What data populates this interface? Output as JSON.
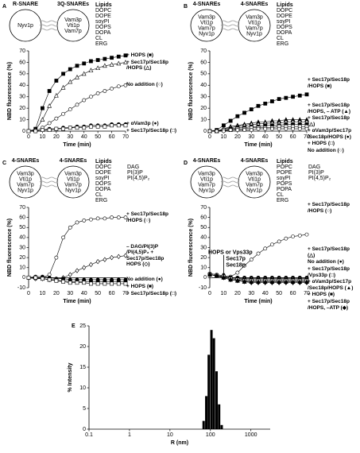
{
  "chart_data": [
    {
      "type": "line",
      "panel": "A",
      "vesicles": [
        {
          "label": "R-SNARE",
          "proteins": [
            "Nyv1p"
          ]
        },
        {
          "label": "3Q-SNAREs",
          "proteins": [
            "Vam3p",
            "Vti1p",
            "Vam7p"
          ]
        }
      ],
      "lipids_title": "Lipids",
      "lipids": [
        "DOPC",
        "DOPE",
        "soyPI",
        "DOPS",
        "DOPA",
        "CL",
        "ERG"
      ],
      "xlabel": "Time (min)",
      "ylabel": "NBD fluorescence (%)",
      "x": [
        0,
        5,
        10,
        15,
        20,
        25,
        30,
        35,
        40,
        45,
        50,
        55,
        60,
        65,
        70
      ],
      "xlim": [
        0,
        70
      ],
      "xticks": [
        0,
        10,
        20,
        30,
        40,
        50,
        60,
        70
      ],
      "ylim": [
        0,
        70
      ],
      "yticks": [
        0,
        10,
        20,
        30,
        40,
        50,
        60,
        70
      ],
      "series": [
        {
          "name": "+ HOPS (■)",
          "marker": "square-filled",
          "color": "#000000",
          "values": [
            0,
            2,
            20,
            35,
            44,
            50,
            54,
            57,
            59,
            61,
            62,
            63,
            64,
            65,
            66
          ]
        },
        {
          "name": "+ Sec17p/Sec18p /HOPS (△)",
          "marker": "triangle-open",
          "color": "#000000",
          "values": [
            0,
            1,
            10,
            22,
            31,
            38,
            43,
            47,
            50,
            53,
            55,
            57,
            58,
            59,
            60
          ]
        },
        {
          "name": "No addition (○)",
          "marker": "circle-open",
          "color": "#000000",
          "values": [
            0,
            0,
            3,
            7,
            11,
            15,
            19,
            23,
            27,
            30,
            33,
            35,
            37,
            39,
            40
          ]
        },
        {
          "name": "+ αVam3p (●)",
          "marker": "circle-filled",
          "color": "#000000",
          "values": [
            0,
            0,
            1,
            2,
            2,
            3,
            3,
            4,
            4,
            5,
            5,
            5,
            6,
            6,
            6
          ]
        },
        {
          "name": "+ Sec17p/Sec18p (□)",
          "marker": "square-open",
          "color": "#000000",
          "values": [
            0,
            0,
            1,
            1,
            2,
            2,
            3,
            3,
            3,
            4,
            4,
            4,
            5,
            5,
            5
          ]
        }
      ]
    },
    {
      "type": "line",
      "panel": "B",
      "vesicles": [
        {
          "label": "4-SNAREs",
          "proteins": [
            "Vam3p",
            "Vti1p",
            "Vam7p",
            "Nyv1p"
          ]
        },
        {
          "label": "4-SNAREs",
          "proteins": [
            "Vam3p",
            "Vti1p",
            "Vam7p",
            "Nyv1p"
          ]
        }
      ],
      "lipids_title": "Lipids",
      "lipids": [
        "DOPC",
        "DOPE",
        "soyPI",
        "DOPS",
        "DOPA",
        "CL",
        "ERG"
      ],
      "xlabel": "Time (min)",
      "ylabel": "NBD fluorescence (%)",
      "x": [
        0,
        5,
        10,
        15,
        20,
        25,
        30,
        35,
        40,
        45,
        50,
        55,
        60,
        65,
        70
      ],
      "xlim": [
        0,
        70
      ],
      "xticks": [
        0,
        10,
        20,
        30,
        40,
        50,
        60,
        70
      ],
      "ylim": [
        0,
        70
      ],
      "yticks": [
        0,
        10,
        20,
        30,
        40,
        50,
        60,
        70
      ],
      "series": [
        {
          "name": "+ Sec17p/Sec18p /HOPS (■)",
          "marker": "square-filled",
          "color": "#000000",
          "values": [
            0,
            1,
            5,
            9,
            13,
            16,
            19,
            22,
            24,
            26,
            28,
            29,
            30,
            31,
            32
          ]
        },
        {
          "name": "+ Sec17p/Sec18p /HOPS, – ATP (▲)",
          "marker": "triangle-filled",
          "color": "#000000",
          "values": [
            0,
            0,
            2,
            4,
            5,
            6,
            7,
            8,
            8,
            9,
            9,
            10,
            10,
            10,
            10
          ]
        },
        {
          "name": "+ Sec17p/Sec18p (△)",
          "marker": "triangle-open",
          "color": "#000000",
          "values": [
            0,
            0,
            2,
            3,
            4,
            5,
            6,
            6,
            7,
            7,
            7,
            8,
            8,
            8,
            8
          ]
        },
        {
          "name": "+ αVam3p/Sec17p /Sec18p/HOPS (●)",
          "marker": "circle-filled",
          "color": "#000000",
          "values": [
            0,
            0,
            1,
            2,
            3,
            3,
            4,
            4,
            5,
            5,
            5,
            6,
            6,
            6,
            6
          ]
        },
        {
          "name": "+ HOPS (□)",
          "marker": "square-open",
          "color": "#000000",
          "values": [
            0,
            0,
            1,
            1,
            2,
            2,
            3,
            3,
            3,
            3,
            4,
            4,
            4,
            4,
            4
          ]
        },
        {
          "name": "No addition (○)",
          "marker": "circle-open",
          "color": "#000000",
          "values": [
            0,
            0,
            0,
            1,
            1,
            1,
            1,
            2,
            2,
            2,
            2,
            2,
            2,
            2,
            2
          ]
        }
      ]
    },
    {
      "type": "line",
      "panel": "C",
      "vesicles": [
        {
          "label": "4-SNAREs",
          "proteins": [
            "Vam3p",
            "Vti1p",
            "Vam7p",
            "Nyv1p"
          ]
        },
        {
          "label": "4-SNAREs",
          "proteins": [
            "Vam3p",
            "Vti1p",
            "Vam7p",
            "Nyv1p"
          ]
        }
      ],
      "lipids_title": "Lipids",
      "lipids": [
        "DOPC",
        "DOPE",
        "soyPI",
        "DOPS",
        "DOPA",
        "CL",
        "ERG"
      ],
      "lipids2": [
        "DAG",
        "PI(3)P",
        "PI(4,5)P₂"
      ],
      "xlabel": "Time (min)",
      "ylabel": "NBD fluorescence (%)",
      "x": [
        0,
        5,
        10,
        15,
        20,
        25,
        30,
        35,
        40,
        45,
        50,
        55,
        60,
        65,
        70
      ],
      "xlim": [
        0,
        70
      ],
      "xticks": [
        0,
        10,
        20,
        30,
        40,
        50,
        60,
        70
      ],
      "ylim": [
        -10,
        70
      ],
      "yticks": [
        -10,
        0,
        10,
        20,
        30,
        40,
        50,
        60,
        70
      ],
      "series": [
        {
          "name": "+ Sec17p/Sec18p /HOPS (○)",
          "marker": "circle-open",
          "color": "#000000",
          "values": [
            0,
            -1,
            0,
            3,
            20,
            40,
            50,
            55,
            57,
            58,
            59,
            59,
            60,
            60,
            60
          ]
        },
        {
          "name": "– DAG/PI(3)P /PI(4,5)P₂ + Sec17p/Sec18p HOPS (◇)",
          "marker": "diamond-open",
          "color": "#000000",
          "values": [
            0,
            -1,
            -1,
            -2,
            -2,
            0,
            3,
            7,
            10,
            13,
            16,
            18,
            20,
            21,
            22
          ]
        },
        {
          "name": "No addition (●)",
          "marker": "circle-filled",
          "color": "#000000",
          "values": [
            0,
            1,
            1,
            0,
            -1,
            -1,
            -2,
            -2,
            -2,
            -2,
            -2,
            -2,
            -2,
            -2,
            -2
          ]
        },
        {
          "name": "+ HOPS (■)",
          "marker": "square-filled",
          "color": "#000000",
          "values": [
            0,
            0,
            -1,
            -2,
            -3,
            -3,
            -4,
            -4,
            -4,
            -4,
            -4,
            -4,
            -4,
            -4,
            -4
          ]
        },
        {
          "name": "+ Sec17p/Sec18p (□)",
          "marker": "square-open",
          "color": "#000000",
          "values": [
            0,
            0,
            -1,
            -2,
            -3,
            -4,
            -5,
            -5,
            -5,
            -6,
            -6,
            -6,
            -6,
            -6,
            -6
          ]
        }
      ]
    },
    {
      "type": "line",
      "panel": "D",
      "vesicles": [
        {
          "label": "4-SNAREs",
          "proteins": [
            "Vam3p",
            "Vti1p",
            "Vam7p",
            "Nyv1p"
          ]
        },
        {
          "label": "4-SNAREs",
          "proteins": [
            "Vam3p",
            "Vti1p",
            "Vam7p",
            "Nyv1p"
          ]
        }
      ],
      "lipids_title": "Lipids",
      "lipids": [
        "POPC",
        "POPE",
        "soyPI",
        "POPS",
        "POPA",
        "CL",
        "ERG"
      ],
      "lipids2": [
        "DAG",
        "PI(3)P",
        "PI(4,5)P₂"
      ],
      "xlabel": "Time (min)",
      "ylabel": "NBD fluorescence (%)",
      "x": [
        0,
        5,
        10,
        15,
        20,
        25,
        30,
        35,
        40,
        45,
        50,
        55,
        60,
        65,
        70
      ],
      "xlim": [
        0,
        70
      ],
      "xticks": [
        0,
        10,
        20,
        30,
        40,
        50,
        60,
        70
      ],
      "ylim": [
        -10,
        70
      ],
      "yticks": [
        -10,
        0,
        10,
        20,
        30,
        40,
        50,
        60,
        70
      ],
      "annotation": {
        "lines": [
          "HOPS or Vps33p",
          "Sec17p",
          "Sec18p"
        ],
        "x": 10
      },
      "series": [
        {
          "name": "+ Sec17p/Sec18p /HOPS (○)",
          "marker": "circle-open",
          "color": "#000000",
          "values": [
            4,
            3,
            2,
            1,
            5,
            12,
            18,
            24,
            29,
            33,
            36,
            39,
            41,
            42,
            43
          ]
        },
        {
          "name": "No addition (●)",
          "marker": "circle-filled",
          "color": "#000000",
          "values": [
            3,
            2,
            1,
            0,
            0,
            0,
            0,
            0,
            0,
            0,
            0,
            0,
            0,
            0,
            0
          ]
        },
        {
          "name": "+ Sec17p/Sec18p (△)",
          "marker": "triangle-open",
          "color": "#000000",
          "values": [
            3,
            2,
            1,
            0,
            -1,
            -1,
            -1,
            -1,
            -1,
            -1,
            -1,
            -1,
            -1,
            -1,
            -1
          ]
        },
        {
          "name": "+ HOPS (■)",
          "marker": "square-filled",
          "color": "#000000",
          "values": [
            3,
            2,
            1,
            0,
            -1,
            -2,
            -2,
            -2,
            -2,
            -2,
            -2,
            -2,
            -2,
            -2,
            -2
          ]
        },
        {
          "name": "+ Sec17p/Sec18p /Vps33p (□)",
          "marker": "square-open",
          "color": "#000000",
          "values": [
            3,
            2,
            1,
            -1,
            -2,
            -3,
            -3,
            -3,
            -3,
            -3,
            -3,
            -3,
            -3,
            -3,
            -3
          ]
        },
        {
          "name": "+ αVam3p/Sec17p /Sec18p/HOPS (▲)",
          "marker": "triangle-filled",
          "color": "#000000",
          "values": [
            3,
            2,
            0,
            -2,
            -3,
            -4,
            -4,
            -4,
            -4,
            -4,
            -4,
            -4,
            -4,
            -4,
            -4
          ]
        },
        {
          "name": "+ Sec17p/Sec18p /HOPS, –ATP (◆)",
          "marker": "diamond-filled",
          "color": "#000000",
          "values": [
            3,
            2,
            0,
            -2,
            -3,
            -4,
            -5,
            -5,
            -5,
            -5,
            -5,
            -5,
            -5,
            -5,
            -5
          ]
        }
      ]
    },
    {
      "type": "bar",
      "panel": "E",
      "log_x": true,
      "xlabel": "R (nm)",
      "ylabel": "% Intensity",
      "x": [
        68,
        79,
        91,
        106,
        122,
        142,
        164,
        190
      ],
      "values": [
        2,
        8,
        18,
        24,
        22,
        14,
        6,
        1
      ],
      "color": "#000000",
      "xlim": [
        0.1,
        3000
      ],
      "xticks": [
        0.1,
        1,
        10,
        100,
        1000
      ],
      "ylim": [
        0,
        25
      ],
      "yticks": [
        0,
        5,
        10,
        15,
        20,
        25
      ]
    }
  ]
}
